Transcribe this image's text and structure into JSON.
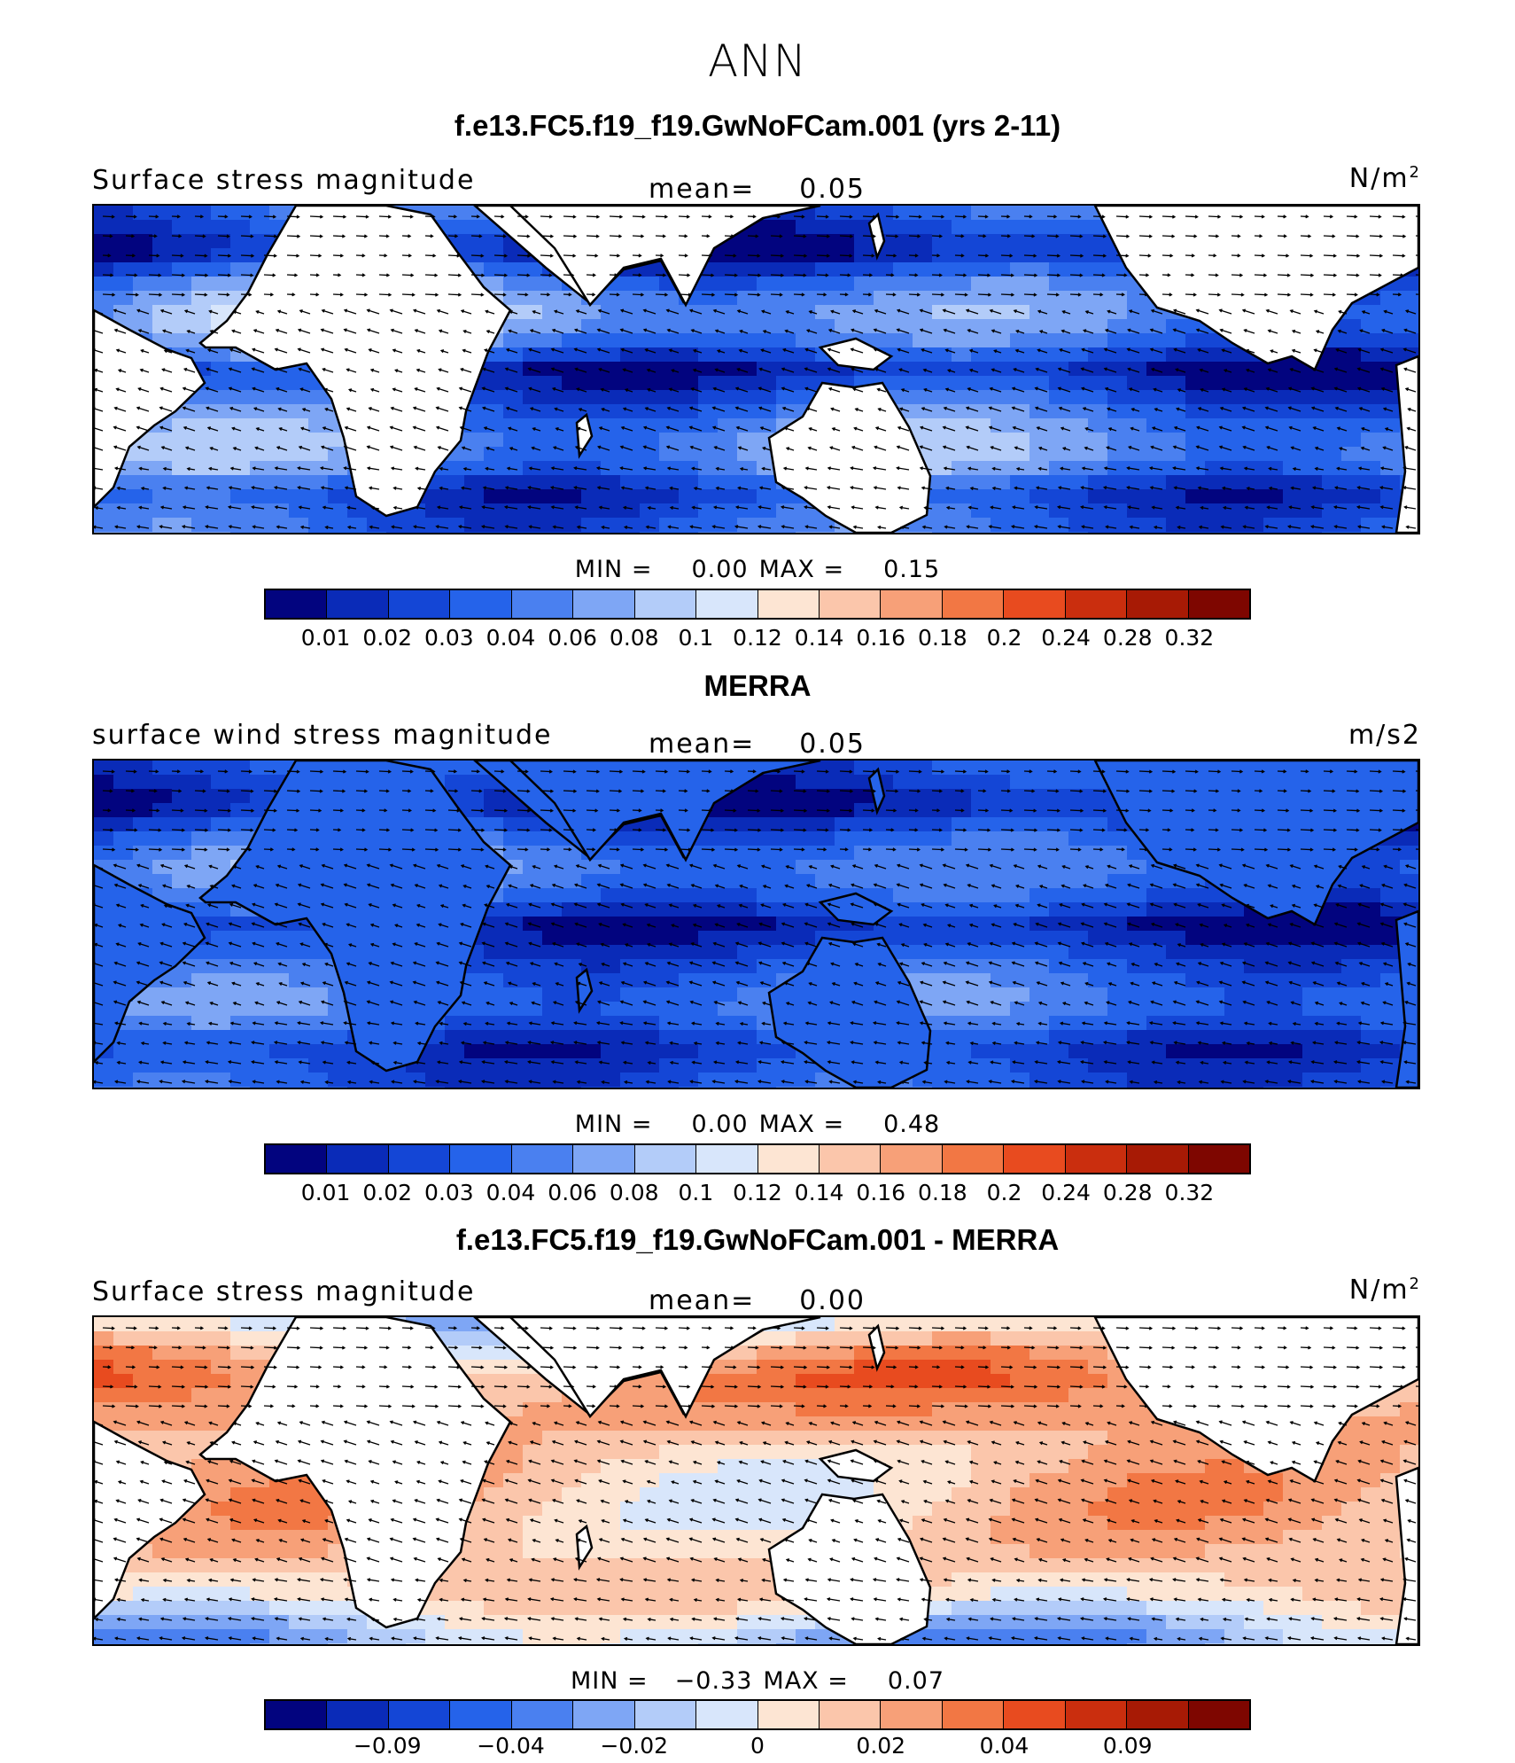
{
  "title": "ANN",
  "palette_pos": [
    "#02047f",
    "#0a2bb8",
    "#1446d6",
    "#2563ea",
    "#4a80f0",
    "#7ea6f5",
    "#b3ccf9",
    "#d8e6fb",
    "#fde5d3",
    "#fbc6ab",
    "#f7a078",
    "#f27744",
    "#e84b1f",
    "#ca2e0e",
    "#a71a05",
    "#7e0600"
  ],
  "panels": [
    {
      "title": "f.e13.FC5.f19_f19.GwNoFCam.001 (yrs 2-11)",
      "left_label": "Surface stress magnitude",
      "mean_label": "mean=",
      "mean_value": "0.05",
      "units": "N/m",
      "units_sup": "2",
      "min_label": "MIN =",
      "min_value": "0.00",
      "max_label": "MAX =",
      "max_value": "0.15",
      "field": "model",
      "ticks": [
        "0.01",
        "0.02",
        "0.03",
        "0.04",
        "0.06",
        "0.08",
        "0.1",
        "0.12",
        "0.14",
        "0.16",
        "0.18",
        "0.2",
        "0.24",
        "0.28",
        "0.32"
      ]
    },
    {
      "title": "MERRA",
      "left_label": "surface wind stress magnitude",
      "mean_label": "mean=",
      "mean_value": "0.05",
      "units": "m/s2",
      "units_sup": "",
      "min_label": "MIN =",
      "min_value": "0.00",
      "max_label": "MAX =",
      "max_value": "0.48",
      "field": "obs",
      "ticks": [
        "0.01",
        "0.02",
        "0.03",
        "0.04",
        "0.06",
        "0.08",
        "0.1",
        "0.12",
        "0.14",
        "0.16",
        "0.18",
        "0.2",
        "0.24",
        "0.28",
        "0.32"
      ]
    },
    {
      "title": "f.e13.FC5.f19_f19.GwNoFCam.001 - MERRA",
      "left_label": "Surface stress magnitude",
      "mean_label": "mean=",
      "mean_value": "0.00",
      "units": "N/m",
      "units_sup": "2",
      "min_label": "MIN =",
      "min_value": "−0.33",
      "max_label": "MAX =",
      "max_value": "0.07",
      "field": "diff",
      "ticks": [
        "−0.09",
        "−0.04",
        "−0.02",
        "0",
        "0.02",
        "0.04",
        "0.09"
      ]
    }
  ]
}
